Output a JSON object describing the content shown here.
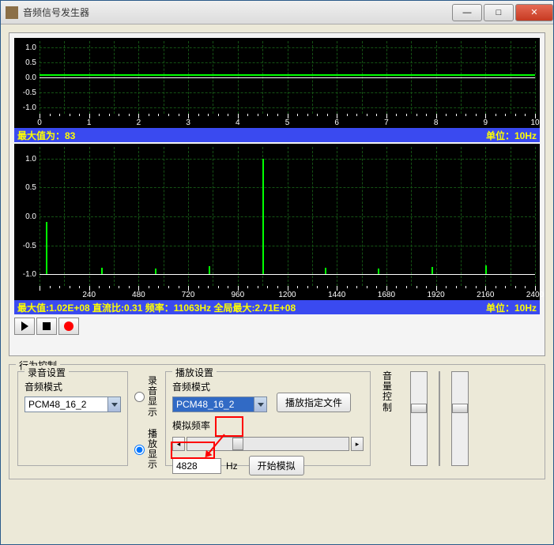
{
  "window": {
    "title": "音频信号发生器"
  },
  "chart1": {
    "type": "line",
    "yticks": [
      "1.0",
      "0.5",
      "0.0",
      "-0.5",
      "-1.0"
    ],
    "xticks": [
      "0",
      "1",
      "2",
      "3",
      "4",
      "5",
      "6",
      "7",
      "8",
      "9",
      "10"
    ],
    "xlim": [
      0,
      10
    ],
    "ylim": [
      -1.2,
      1.2
    ],
    "signal_y": 0.1,
    "bg": "#000000",
    "grid_color": "#145214",
    "line_color": "#00ff00",
    "axis_color": "#ffffff"
  },
  "status1": {
    "left": "最大值为：83",
    "right": "单位：10Hz",
    "bg": "#3a4af0",
    "fg": "#ffff00"
  },
  "chart2": {
    "type": "spectrum",
    "yticks": [
      "1.0",
      "0.5",
      "0.0",
      "-0.5",
      "-1.0"
    ],
    "xticks": [
      "240",
      "480",
      "720",
      "960",
      "1200",
      "1440",
      "1680",
      "1920",
      "2160",
      "2400"
    ],
    "xlim": [
      0,
      2400
    ],
    "ylim": [
      -1.2,
      1.2
    ],
    "peaks": [
      {
        "x": 30,
        "h": 0.9
      },
      {
        "x": 1080,
        "h": 2.0
      },
      {
        "x": 300,
        "h": 0.12
      },
      {
        "x": 560,
        "h": 0.1
      },
      {
        "x": 820,
        "h": 0.14
      },
      {
        "x": 1380,
        "h": 0.11
      },
      {
        "x": 1640,
        "h": 0.1
      },
      {
        "x": 1900,
        "h": 0.13
      },
      {
        "x": 2160,
        "h": 0.15
      }
    ],
    "bg": "#000000",
    "grid_color": "#145214",
    "line_color": "#00ff00",
    "axis_color": "#ffffff"
  },
  "status2": {
    "left": "最大值:1.02E+08  直流比:0.31  频率：11063Hz 全局最大:2.71E+08",
    "right": "单位：10Hz"
  },
  "behavior": {
    "title": "行为控制",
    "record": {
      "title": "录音设置",
      "mode_label": "音频模式",
      "mode_value": "PCM48_16_2"
    },
    "display_group": {
      "opt1": "录音显示",
      "opt2": "播放显示",
      "selected": 2
    },
    "play": {
      "title": "播放设置",
      "mode_label": "音频模式",
      "mode_value": "PCM48_16_2",
      "play_file_btn": "播放指定文件",
      "freq_label": "模拟频率",
      "slider_value": 0.28,
      "hz_value": "4828",
      "hz_unit": "Hz",
      "start_btn": "开始模拟"
    },
    "volume_label": "音量控制"
  },
  "annotations": {
    "redbox1": {
      "note": "around slider thumb"
    },
    "redbox2": {
      "note": "around hz value"
    },
    "arrow": {
      "note": "from box1 to box2"
    }
  }
}
